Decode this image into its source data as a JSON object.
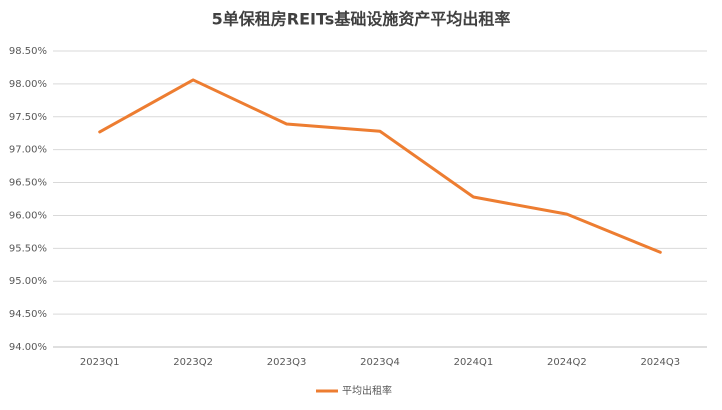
{
  "chart_data": {
    "type": "line",
    "title": "5单保租房REITs基础设施资产平均出租率",
    "categories": [
      "2023Q1",
      "2023Q2",
      "2023Q3",
      "2023Q4",
      "2024Q1",
      "2024Q2",
      "2024Q3"
    ],
    "series": [
      {
        "name": "平均出租率",
        "color": "#ed7d31",
        "values": [
          97.27,
          98.06,
          97.39,
          97.28,
          96.28,
          96.02,
          95.44
        ]
      }
    ],
    "ylim": [
      94.0,
      98.5
    ],
    "yticks": [
      {
        "value": 94.0,
        "label": "94.00%"
      },
      {
        "value": 94.5,
        "label": "94.50%"
      },
      {
        "value": 95.0,
        "label": "95.00%"
      },
      {
        "value": 95.5,
        "label": "95.50%"
      },
      {
        "value": 96.0,
        "label": "96.00%"
      },
      {
        "value": 96.5,
        "label": "96.50%"
      },
      {
        "value": 97.0,
        "label": "97.00%"
      },
      {
        "value": 97.5,
        "label": "97.50%"
      },
      {
        "value": 98.0,
        "label": "98.00%"
      },
      {
        "value": 98.5,
        "label": "98.50%"
      }
    ],
    "grid": true,
    "legend": "bottom"
  }
}
